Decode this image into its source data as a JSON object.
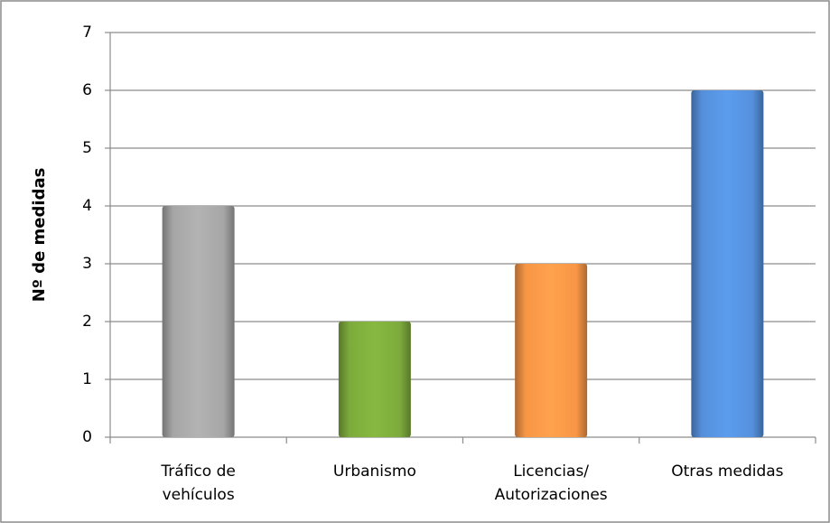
{
  "chart_data": {
    "type": "bar",
    "y_label": "Nº de medidas",
    "categories": [
      "Tráfico de\nvehículos",
      "Urbanismo",
      "Licencias/\nAutorizaciones",
      "Otras medidas"
    ],
    "values": [
      4,
      2,
      3,
      6
    ],
    "colors": [
      "#a6a6a6",
      "#7dab3c",
      "#f79646",
      "#5590dc"
    ],
    "ylim": [
      0,
      7
    ],
    "yticks": [
      0,
      1,
      2,
      3,
      4,
      5,
      6,
      7
    ],
    "grid": true
  }
}
